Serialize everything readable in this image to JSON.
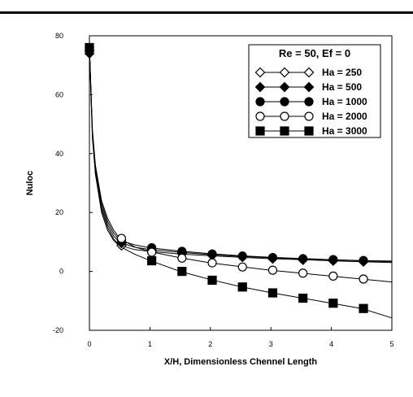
{
  "chart_data": {
    "type": "line",
    "title": "",
    "xlabel": "X/H, Dimensionless Chennel Length",
    "ylabel": "Nuloc",
    "xlim": [
      0,
      5
    ],
    "ylim": [
      -20,
      80
    ],
    "xticks": [
      "0",
      "1",
      "2",
      "3",
      "4",
      "5"
    ],
    "yticks": [
      "-20",
      "0",
      "20",
      "40",
      "60",
      "80"
    ],
    "grid": false,
    "legend_position": "top-right",
    "legend_title": "Re = 50, Ef = 0",
    "series": [
      {
        "name": "Ha = 250",
        "marker": "diamond-open",
        "curve": [
          [
            0.0,
            76
          ],
          [
            0.05,
            45
          ],
          [
            0.1,
            33
          ],
          [
            0.2,
            21
          ],
          [
            0.3,
            15
          ],
          [
            0.4,
            11
          ],
          [
            0.5,
            8.8
          ],
          [
            0.75,
            7.4
          ],
          [
            1.0,
            6.8
          ],
          [
            1.5,
            5.9
          ],
          [
            2.0,
            5.3
          ],
          [
            2.5,
            4.8
          ],
          [
            3.0,
            4.3
          ],
          [
            3.5,
            4.0
          ],
          [
            4.0,
            3.6
          ],
          [
            4.5,
            3.3
          ],
          [
            5.0,
            3.0
          ]
        ],
        "markers": [
          [
            0.0,
            75
          ],
          [
            0.53,
            8.8
          ],
          [
            1.03,
            6.8
          ],
          [
            1.53,
            6.0
          ],
          [
            2.03,
            5.4
          ],
          [
            2.53,
            4.9
          ],
          [
            3.03,
            4.3
          ],
          [
            3.53,
            3.9
          ],
          [
            4.03,
            3.6
          ],
          [
            4.53,
            3.3
          ]
        ]
      },
      {
        "name": "Ha = 500",
        "marker": "diamond-filled",
        "curve": [
          [
            0.0,
            76
          ],
          [
            0.05,
            46
          ],
          [
            0.1,
            34
          ],
          [
            0.2,
            22
          ],
          [
            0.3,
            16
          ],
          [
            0.4,
            12
          ],
          [
            0.5,
            9.8
          ],
          [
            0.75,
            8.2
          ],
          [
            1.0,
            7.4
          ],
          [
            1.5,
            6.5
          ],
          [
            2.0,
            5.7
          ],
          [
            2.5,
            5.1
          ],
          [
            3.0,
            4.6
          ],
          [
            3.5,
            4.2
          ],
          [
            4.0,
            3.9
          ],
          [
            4.5,
            3.6
          ],
          [
            5.0,
            3.3
          ]
        ],
        "markers": [
          [
            0.0,
            74
          ],
          [
            0.53,
            9.6
          ],
          [
            1.03,
            7.3
          ],
          [
            1.53,
            6.4
          ],
          [
            2.03,
            5.7
          ],
          [
            2.53,
            5.0
          ],
          [
            3.03,
            4.6
          ],
          [
            3.53,
            4.2
          ],
          [
            4.03,
            3.8
          ],
          [
            4.53,
            3.5
          ]
        ]
      },
      {
        "name": "Ha = 1000",
        "marker": "circle-filled",
        "curve": [
          [
            0.0,
            76
          ],
          [
            0.05,
            47
          ],
          [
            0.1,
            35
          ],
          [
            0.2,
            23
          ],
          [
            0.3,
            17
          ],
          [
            0.4,
            13
          ],
          [
            0.5,
            10.5
          ],
          [
            0.75,
            9.0
          ],
          [
            1.0,
            8.0
          ],
          [
            1.5,
            6.9
          ],
          [
            2.0,
            6.0
          ],
          [
            2.5,
            5.3
          ],
          [
            3.0,
            4.8
          ],
          [
            3.5,
            4.4
          ],
          [
            4.0,
            4.0
          ],
          [
            4.5,
            3.7
          ],
          [
            5.0,
            3.5
          ]
        ],
        "markers": [
          [
            0.0,
            76
          ],
          [
            0.53,
            10.6
          ],
          [
            1.03,
            8.0
          ],
          [
            1.53,
            6.8
          ],
          [
            2.03,
            5.9
          ],
          [
            2.53,
            5.2
          ],
          [
            3.03,
            4.7
          ],
          [
            3.53,
            4.3
          ],
          [
            4.03,
            4.0
          ],
          [
            4.53,
            3.7
          ]
        ]
      },
      {
        "name": "Ha = 2000",
        "marker": "circle-open",
        "curve": [
          [
            0.0,
            76
          ],
          [
            0.05,
            48
          ],
          [
            0.1,
            36
          ],
          [
            0.2,
            24
          ],
          [
            0.3,
            18
          ],
          [
            0.4,
            14
          ],
          [
            0.5,
            11.2
          ],
          [
            0.75,
            8.3
          ],
          [
            1.0,
            6.7
          ],
          [
            1.5,
            4.6
          ],
          [
            2.0,
            2.9
          ],
          [
            2.5,
            1.6
          ],
          [
            3.0,
            0.4
          ],
          [
            3.5,
            -0.6
          ],
          [
            4.0,
            -1.6
          ],
          [
            4.5,
            -2.6
          ],
          [
            5.0,
            -3.6
          ]
        ],
        "markers": [
          [
            0.0,
            76
          ],
          [
            0.53,
            11.2
          ],
          [
            1.03,
            6.5
          ],
          [
            1.53,
            4.5
          ],
          [
            2.03,
            2.9
          ],
          [
            2.53,
            1.5
          ],
          [
            3.03,
            0.4
          ],
          [
            3.53,
            -0.6
          ],
          [
            4.03,
            -1.6
          ],
          [
            4.53,
            -2.6
          ]
        ]
      },
      {
        "name": "Ha = 3000",
        "marker": "square-filled",
        "curve": [
          [
            0.0,
            76
          ],
          [
            0.05,
            47
          ],
          [
            0.1,
            33
          ],
          [
            0.2,
            20
          ],
          [
            0.3,
            14
          ],
          [
            0.4,
            10.5
          ],
          [
            0.5,
            8.5
          ],
          [
            0.75,
            5.8
          ],
          [
            1.0,
            3.7
          ],
          [
            1.5,
            0.0
          ],
          [
            2.0,
            -2.8
          ],
          [
            2.5,
            -5.2
          ],
          [
            3.0,
            -7.2
          ],
          [
            3.5,
            -9.0
          ],
          [
            4.0,
            -10.8
          ],
          [
            4.5,
            -12.6
          ],
          [
            5.0,
            -15.8
          ]
        ],
        "markers": [
          [
            0.0,
            76
          ],
          [
            1.03,
            3.6
          ],
          [
            1.53,
            0.0
          ],
          [
            2.03,
            -3.0
          ],
          [
            2.53,
            -5.3
          ],
          [
            3.03,
            -7.3
          ],
          [
            3.53,
            -9.1
          ],
          [
            4.03,
            -10.8
          ],
          [
            4.53,
            -12.6
          ]
        ]
      }
    ]
  }
}
